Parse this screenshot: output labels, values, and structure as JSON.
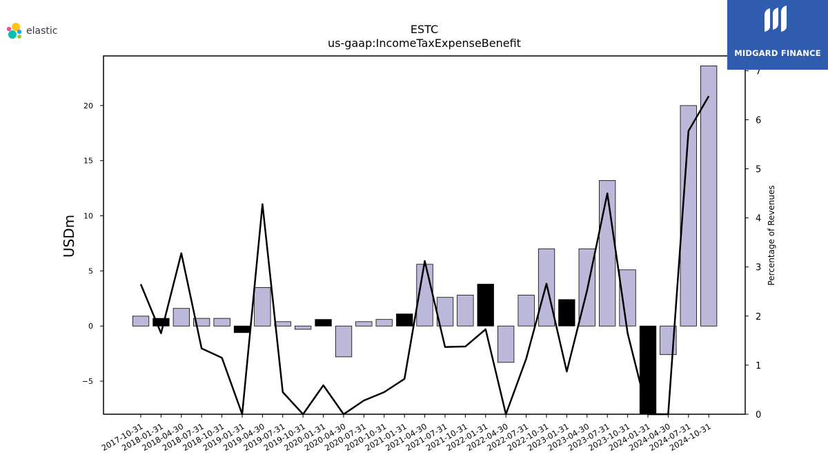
{
  "header": {
    "title": "ESTC",
    "subtitle": "us-gaap:IncomeTaxExpenseBenefit"
  },
  "logos": {
    "left_wordmark": "elastic",
    "right_wordmark": "MIDGARD FINANCE"
  },
  "colors": {
    "bar_positive": "#bcb8da",
    "bar_highlight": "#000000",
    "line": "#000000",
    "badge_bg": "#2f5cae"
  },
  "chart_data": {
    "type": "bar",
    "title": "ESTC",
    "subtitle": "us-gaap:IncomeTaxExpenseBenefit",
    "ylabel": "USDm",
    "y2label": "Percentage of Revenues",
    "ylim": [
      -8,
      24.5
    ],
    "y2lim": [
      0,
      7.3
    ],
    "yticks": [
      -5,
      0,
      5,
      10,
      15,
      20
    ],
    "yticklabels": [
      "−5",
      "0",
      "5",
      "10",
      "15",
      "20"
    ],
    "y2ticks": [
      0,
      1,
      2,
      3,
      4,
      5,
      6,
      7
    ],
    "categories": [
      "2017-10-31",
      "2018-01-31",
      "2018-04-30",
      "2018-07-31",
      "2018-10-31",
      "2019-01-31",
      "2019-04-30",
      "2019-07-31",
      "2019-10-31",
      "2020-01-31",
      "2020-04-30",
      "2020-07-31",
      "2020-10-31",
      "2021-01-31",
      "2021-04-30",
      "2021-07-31",
      "2021-10-31",
      "2022-01-31",
      "2022-04-30",
      "2022-07-31",
      "2022-10-31",
      "2023-01-31",
      "2023-04-30",
      "2023-07-31",
      "2023-10-31",
      "2024-01-31",
      "2024-04-30",
      "2024-07-31",
      "2024-10-31"
    ],
    "series": [
      {
        "kind": "bar",
        "values": [
          0.9,
          0.7,
          1.6,
          0.7,
          0.7,
          -0.6,
          3.5,
          0.4,
          -0.3,
          0.6,
          -2.8,
          0.4,
          0.6,
          1.1,
          5.6,
          2.6,
          2.8,
          3.8,
          -3.3,
          2.8,
          7.0,
          2.4,
          7.0,
          13.2,
          5.1,
          -8.0,
          -2.6,
          20.0,
          23.6
        ],
        "highlight": [
          false,
          true,
          false,
          false,
          false,
          true,
          false,
          false,
          false,
          true,
          false,
          false,
          false,
          true,
          false,
          false,
          false,
          true,
          false,
          false,
          false,
          true,
          false,
          false,
          false,
          true,
          false,
          false,
          false
        ]
      },
      {
        "kind": "line",
        "axis": "y2",
        "values": [
          2.65,
          1.65,
          3.28,
          1.34,
          1.15,
          -0.3,
          4.28,
          0.45,
          -0.3,
          0.59,
          -0.5,
          0.28,
          0.45,
          0.72,
          3.12,
          1.37,
          1.38,
          1.73,
          -0.3,
          1.13,
          2.66,
          0.87,
          2.52,
          4.5,
          1.65,
          -0.3,
          -0.3,
          5.77,
          6.48
        ]
      }
    ],
    "grid": false
  }
}
